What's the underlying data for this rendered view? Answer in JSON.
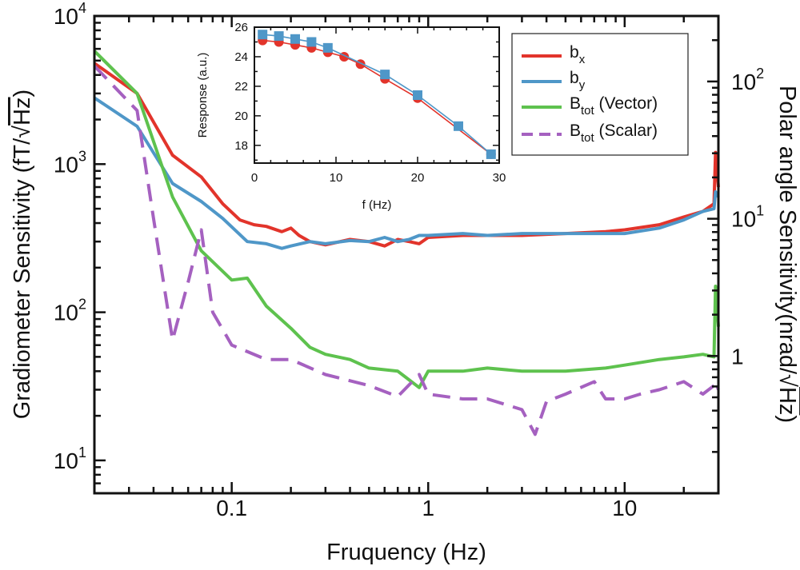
{
  "chart_data": [
    {
      "type": "line",
      "name": "main",
      "xlabel": "Fruquency (Hz)",
      "ylabel": "Gradiometer Sensitivity (fT/√Hz)",
      "ylabel_parts": {
        "text": "Gradiometer Sensitivity (fT/",
        "root": "√",
        "unit": "Hz",
        "close": ")"
      },
      "ylabel2": "Polar angle Sensitivity(nrad/√Hz)",
      "ylabel2_parts": {
        "text": "Polar angle Sensitivity(nrad/",
        "root": "√",
        "unit": "Hz",
        "close": ")"
      },
      "xscale": "log",
      "yscale": "log",
      "xlim": [
        0.02,
        30
      ],
      "ylim": [
        6,
        10000
      ],
      "y2lim": [
        0.1,
        300
      ],
      "x_ticks": [
        {
          "value": 0.1,
          "label": "0.1"
        },
        {
          "value": 1,
          "label": "1"
        },
        {
          "value": 10,
          "label": "10"
        }
      ],
      "y_ticks": [
        {
          "value": 10,
          "base": "10",
          "exp": "1"
        },
        {
          "value": 100,
          "base": "10",
          "exp": "2"
        },
        {
          "value": 1000,
          "base": "10",
          "exp": "3"
        },
        {
          "value": 10000,
          "base": "10",
          "exp": "4"
        }
      ],
      "y2_ticks": [
        {
          "value": 1,
          "base": "1",
          "exp": ""
        },
        {
          "value": 10,
          "base": "10",
          "exp": "1"
        },
        {
          "value": 100,
          "base": "10",
          "exp": "2"
        }
      ],
      "legend_position": "top-right",
      "series": [
        {
          "name": "b_x",
          "label": "b",
          "sub": "x",
          "color": "#e2342b",
          "dash": "solid",
          "x": [
            0.02,
            0.033,
            0.05,
            0.07,
            0.09,
            0.11,
            0.13,
            0.15,
            0.18,
            0.2,
            0.22,
            0.25,
            0.3,
            0.4,
            0.5,
            0.6,
            0.7,
            0.8,
            0.9,
            1,
            1.5,
            2,
            3,
            5,
            8,
            10,
            15,
            20,
            25,
            28.5,
            29,
            30
          ],
          "y": [
            4800,
            3000,
            1150,
            820,
            540,
            420,
            390,
            380,
            350,
            370,
            330,
            300,
            285,
            310,
            300,
            280,
            310,
            300,
            290,
            320,
            330,
            330,
            330,
            340,
            350,
            360,
            390,
            440,
            480,
            540,
            1200,
            700
          ]
        },
        {
          "name": "b_y",
          "label": "b",
          "sub": "y",
          "color": "#4f97c8",
          "dash": "solid",
          "x": [
            0.02,
            0.033,
            0.05,
            0.07,
            0.09,
            0.12,
            0.15,
            0.18,
            0.2,
            0.25,
            0.3,
            0.4,
            0.5,
            0.6,
            0.7,
            0.8,
            0.9,
            1,
            1.5,
            2,
            3,
            5,
            8,
            10,
            15,
            20,
            25,
            28.5,
            29,
            30
          ],
          "y": [
            2800,
            1800,
            740,
            560,
            430,
            300,
            290,
            270,
            280,
            300,
            290,
            305,
            300,
            320,
            300,
            310,
            330,
            330,
            340,
            330,
            340,
            340,
            340,
            340,
            370,
            420,
            480,
            500,
            650,
            600
          ]
        },
        {
          "name": "B_tot (Vector)",
          "label": "B",
          "sub": "tot",
          "suffix": " (Vector)",
          "color": "#5ec24e",
          "dash": "solid",
          "x": [
            0.02,
            0.033,
            0.05,
            0.07,
            0.1,
            0.12,
            0.15,
            0.2,
            0.25,
            0.3,
            0.4,
            0.5,
            0.7,
            0.9,
            1,
            1.5,
            2,
            3,
            5,
            8,
            10,
            15,
            20,
            25,
            28.5,
            29,
            30
          ],
          "y": [
            5800,
            3000,
            600,
            260,
            165,
            170,
            110,
            78,
            58,
            52,
            48,
            42,
            40,
            31,
            40,
            40,
            42,
            40,
            40,
            42,
            44,
            48,
            50,
            52,
            50,
            150,
            80
          ]
        },
        {
          "name": "B_tot (Scalar)",
          "label": "B",
          "sub": "tot",
          "suffix": " (Scalar)",
          "color": "#a561c0",
          "dash": "dashed",
          "x": [
            0.02,
            0.033,
            0.04,
            0.05,
            0.06,
            0.07,
            0.08,
            0.1,
            0.15,
            0.2,
            0.3,
            0.5,
            0.7,
            0.9,
            1,
            1.5,
            2,
            3,
            3.5,
            4,
            5,
            7,
            8,
            10,
            12,
            15,
            20,
            25,
            28.5,
            29,
            30
          ],
          "y": [
            4600,
            2300,
            430,
            65,
            160,
            360,
            100,
            60,
            48,
            48,
            38,
            32,
            27,
            38,
            28,
            26,
            26,
            22,
            15,
            25,
            28,
            34,
            26,
            26,
            28,
            30,
            34,
            28,
            32,
            34,
            30
          ]
        }
      ]
    },
    {
      "type": "line",
      "name": "inset",
      "xlabel": "f (Hz)",
      "ylabel": "Response (a.u.)",
      "xlim": [
        0,
        30
      ],
      "ylim": [
        16.8,
        26
      ],
      "x_ticks": [
        0,
        10,
        20,
        30
      ],
      "y_ticks": [
        18,
        20,
        22,
        24,
        26
      ],
      "series": [
        {
          "name": "b_x",
          "color": "#e2342b",
          "marker": "circle",
          "x": [
            1,
            3,
            5,
            7,
            9,
            11,
            13,
            16,
            20,
            29
          ],
          "y": [
            25.1,
            25.0,
            24.8,
            24.6,
            24.3,
            24.0,
            23.5,
            22.5,
            21.2,
            17.4
          ]
        },
        {
          "name": "b_y",
          "color": "#4f97c8",
          "marker": "square",
          "x": [
            1,
            3,
            5,
            7,
            9,
            16,
            20,
            25,
            29
          ],
          "y": [
            25.5,
            25.4,
            25.2,
            25.0,
            24.6,
            22.8,
            21.4,
            19.3,
            17.4
          ]
        }
      ]
    }
  ]
}
